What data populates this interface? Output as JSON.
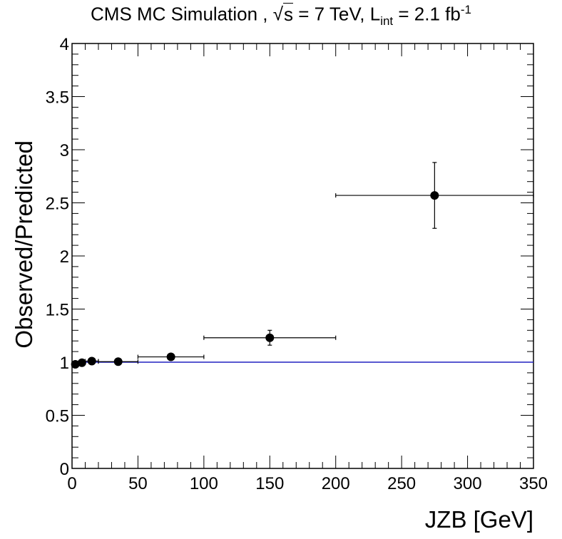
{
  "chart_data": {
    "type": "scatter",
    "title": {
      "prefix": "CMS MC Simulation ,",
      "sqrt_symbol": "√",
      "sqrt_var": "s",
      "energy": " = 7 TeV, L",
      "lumi_sub": "int",
      "lumi_value": " = 2.1 fb",
      "lumi_sup": "-1"
    },
    "xlabel": "JZB [GeV]",
    "ylabel": "Observed/Predicted",
    "xlim": [
      0,
      350
    ],
    "ylim": [
      0,
      4
    ],
    "xticks": [
      "0",
      "50",
      "100",
      "150",
      "200",
      "250",
      "300",
      "350"
    ],
    "yticks": [
      "0",
      "0.5",
      "1",
      "1.5",
      "2",
      "2.5",
      "3",
      "3.5",
      "4"
    ],
    "reference_line": {
      "y": 1,
      "color": "#2020c0"
    },
    "points": [
      {
        "x": 2.5,
        "xlo": 0,
        "xhi": 5,
        "y": 0.98,
        "yerr": 0.01
      },
      {
        "x": 7.5,
        "xlo": 5,
        "xhi": 10,
        "y": 0.995,
        "yerr": 0.01
      },
      {
        "x": 15,
        "xlo": 10,
        "xhi": 20,
        "y": 1.01,
        "yerr": 0.015
      },
      {
        "x": 35,
        "xlo": 20,
        "xhi": 50,
        "y": 1.005,
        "yerr": 0.02
      },
      {
        "x": 75,
        "xlo": 50,
        "xhi": 100,
        "y": 1.05,
        "yerr": 0.035
      },
      {
        "x": 150,
        "xlo": 100,
        "xhi": 200,
        "y": 1.23,
        "yerr": 0.07
      },
      {
        "x": 275,
        "xlo": 200,
        "xhi": 350,
        "y": 2.57,
        "yerr": 0.31
      }
    ],
    "grid": false,
    "legend": "none",
    "colors": {
      "points": "#000000",
      "frame": "#000000"
    }
  }
}
